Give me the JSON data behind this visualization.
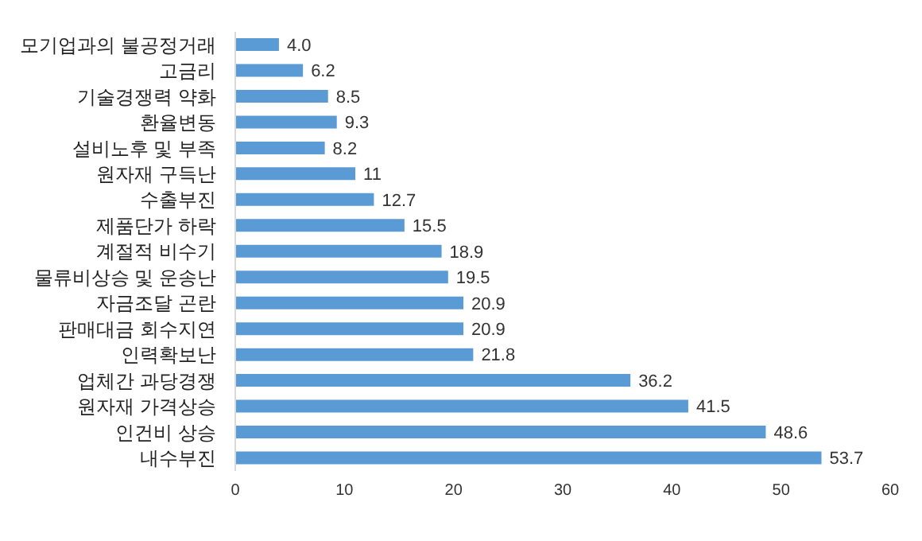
{
  "chart_data": {
    "type": "bar",
    "orientation": "horizontal",
    "categories": [
      "모기업과의 불공정거래",
      "고금리",
      "기술경쟁력 약화",
      "환율변동",
      "설비노후 및 부족",
      "원자재 구득난",
      "수출부진",
      "제품단가 하락",
      "계절적 비수기",
      "물류비상승 및 운송난",
      "자금조달 곤란",
      "판매대금 회수지연",
      "인력확보난",
      "업체간 과당경쟁",
      "원자재 가격상승",
      "인건비 상승",
      "내수부진"
    ],
    "values": [
      4.0,
      6.2,
      8.5,
      9.3,
      8.2,
      11,
      12.7,
      15.5,
      18.9,
      19.5,
      20.9,
      20.9,
      21.8,
      36.2,
      41.5,
      48.6,
      53.7
    ],
    "value_labels": [
      "4.0",
      "6.2",
      "8.5",
      "9.3",
      "8.2",
      "11",
      "12.7",
      "15.5",
      "18.9",
      "19.5",
      "20.9",
      "20.9",
      "21.8",
      "36.2",
      "41.5",
      "48.6",
      "53.7"
    ],
    "color": "#5b9bd5",
    "xlim": [
      0,
      60
    ],
    "xticks": [
      0,
      10,
      20,
      30,
      40,
      50,
      60
    ],
    "grid": false,
    "legend": false
  }
}
